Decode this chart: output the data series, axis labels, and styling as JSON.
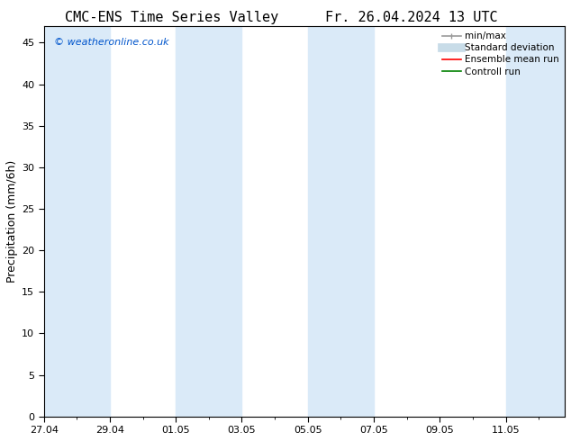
{
  "title_left": "CMC-ENS Time Series Valley",
  "title_right": "Fr. 26.04.2024 13 UTC",
  "ylabel": "Precipitation (mm/6h)",
  "watermark": "© weatheronline.co.uk",
  "watermark_color": "#0055cc",
  "ylim": [
    0,
    47
  ],
  "yticks": [
    0,
    5,
    10,
    15,
    20,
    25,
    30,
    35,
    40,
    45
  ],
  "background_color": "#ffffff",
  "plot_bg_color": "#ffffff",
  "shaded_band_color": "#daeaf8",
  "title_fontsize": 11,
  "ylabel_fontsize": 9,
  "tick_fontsize": 8,
  "watermark_fontsize": 8,
  "legend_fontsize": 7.5,
  "legend_items": [
    {
      "label": "min/max",
      "color": "#aaaaaa",
      "lw": 1.2
    },
    {
      "label": "Standard deviation",
      "color": "#c8dce8",
      "lw": 7
    },
    {
      "label": "Ensemble mean run",
      "color": "#ff0000",
      "lw": 1.2
    },
    {
      "label": "Controll run",
      "color": "#008000",
      "lw": 1.2
    }
  ],
  "num_days": 15,
  "shaded_columns": [
    [
      0,
      1.9
    ],
    [
      3.8,
      5.7
    ],
    [
      7.6,
      9.5
    ],
    [
      13.3,
      15
    ]
  ],
  "x_tick_labels": [
    "27.04",
    "29.04",
    "01.05",
    "03.05",
    "05.05",
    "07.05",
    "09.05",
    "11.05"
  ],
  "x_tick_positions": [
    0,
    1.9,
    3.8,
    5.7,
    7.6,
    9.5,
    11.4,
    13.3
  ]
}
